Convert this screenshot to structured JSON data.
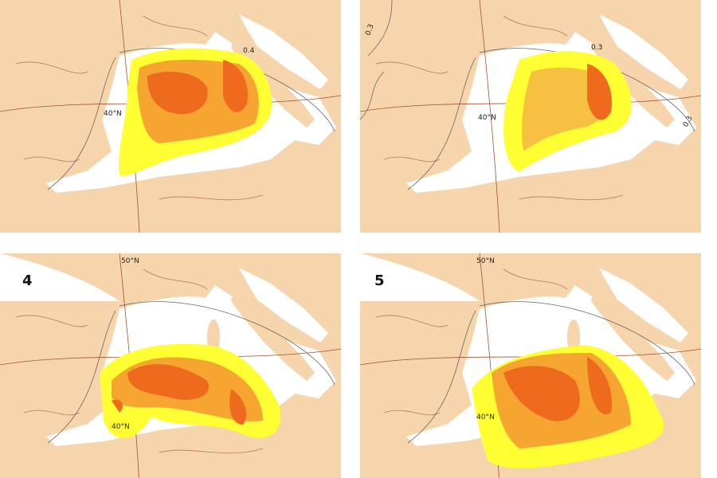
{
  "panels": [
    {
      "latitude_labels": [
        "40°N"
      ],
      "contour_labels": [
        "0.4"
      ]
    },
    {
      "latitude_labels": [
        "40°N"
      ],
      "contour_labels": [
        "0.3",
        "0.3",
        "0.3"
      ]
    },
    {
      "number": "4",
      "latitude_labels": [
        "50°N",
        "40°N"
      ]
    },
    {
      "number": "5",
      "latitude_labels": [
        "50°N",
        "40°N"
      ]
    }
  ]
}
